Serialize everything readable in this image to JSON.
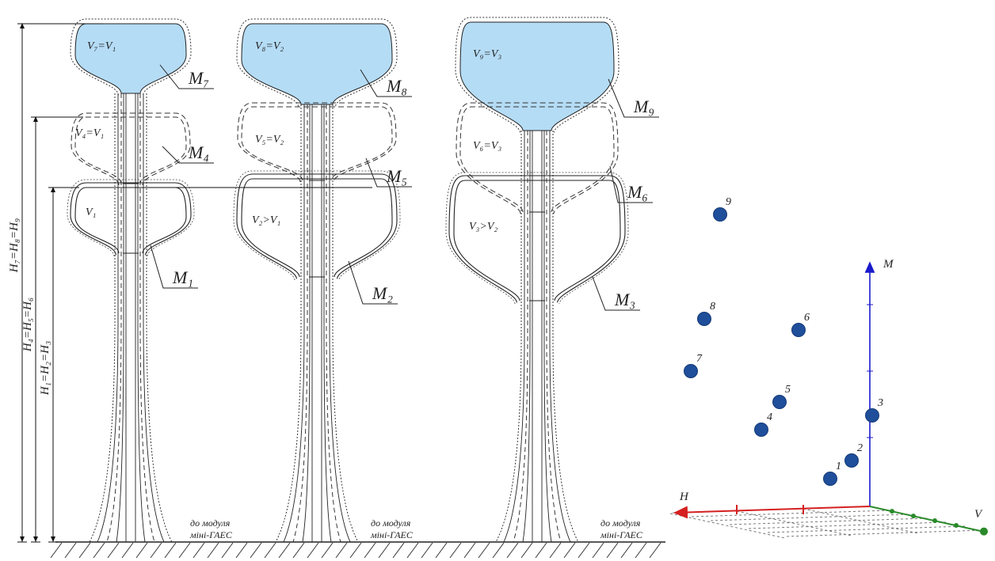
{
  "towers": [
    {
      "volume_labels": [
        "V₇=V₁",
        "V₄=V₁",
        "V₁"
      ],
      "model_labels": [
        "M₇",
        "M₄",
        "M₁"
      ],
      "destination": [
        "до модуля",
        "міні-ГАЕС"
      ]
    },
    {
      "volume_labels": [
        "V₈=V₂",
        "V₅=V₂",
        "V₂>V₁"
      ],
      "model_labels": [
        "M₈",
        "M₅",
        "M₂"
      ],
      "destination": [
        "до модуля",
        "міні-ГАЕС"
      ]
    },
    {
      "volume_labels": [
        "V₉=V₃",
        "V₆=V₃",
        "V₃>V₂"
      ],
      "model_labels": [
        "M₉",
        "M₆",
        "M₃"
      ],
      "destination": [
        "до модуля",
        "міні-ГАЕС"
      ]
    }
  ],
  "heights": [
    "H₇=H₈=H₉",
    "H₄=H₅=H₆",
    "H₁=H₂=H₃"
  ],
  "plot": {
    "axis_labels": [
      "M",
      "H",
      "V"
    ],
    "points": [
      "1",
      "2",
      "3",
      "4",
      "5",
      "6",
      "7",
      "8",
      "9"
    ]
  }
}
